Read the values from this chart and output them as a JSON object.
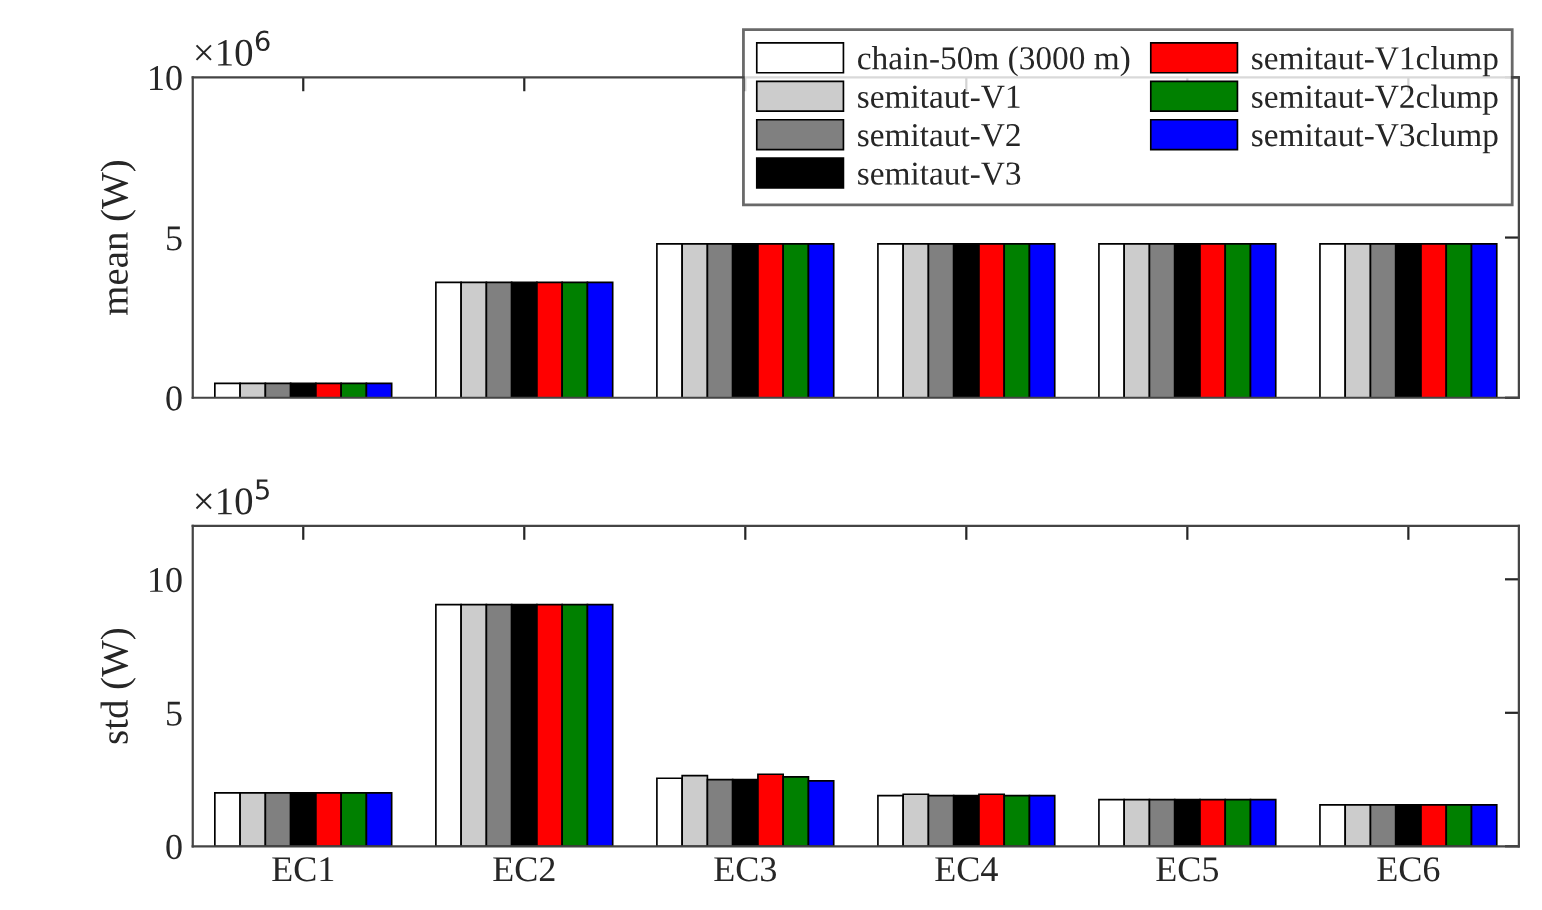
{
  "chart_data": [
    {
      "type": "bar",
      "ylabel": "mean (W)",
      "annotations": [
        "×10$^{6}$"
      ],
      "categories": [
        null,
        null,
        null,
        null,
        null,
        null
      ],
      "ylim": [
        0,
        10
      ],
      "yticks": [
        0,
        5,
        10
      ],
      "legend": "top right",
      "grid": false,
      "series": [
        {
          "name": "chain-50m (3000 m)",
          "color": "#ffffff",
          "values": [
            0.45,
            3.6,
            4.8,
            4.8,
            4.8,
            4.8
          ]
        },
        {
          "name": "semitaut-V1",
          "color": "#cccccc",
          "values": [
            0.45,
            3.6,
            4.8,
            4.8,
            4.8,
            4.8
          ]
        },
        {
          "name": "semitaut-V2",
          "color": "#808080",
          "values": [
            0.45,
            3.6,
            4.8,
            4.8,
            4.8,
            4.8
          ]
        },
        {
          "name": "semitaut-V3",
          "color": "#000000",
          "values": [
            0.45,
            3.6,
            4.8,
            4.8,
            4.8,
            4.8
          ]
        },
        {
          "name": "semitaut-V1clump",
          "color": "#ff0000",
          "values": [
            0.45,
            3.6,
            4.8,
            4.8,
            4.8,
            4.8
          ]
        },
        {
          "name": "semitaut-V2clump",
          "color": "#008000",
          "values": [
            0.45,
            3.6,
            4.8,
            4.8,
            4.8,
            4.8
          ]
        },
        {
          "name": "semitaut-V3clump",
          "color": "#0000ff",
          "values": [
            0.45,
            3.6,
            4.8,
            4.8,
            4.8,
            4.8
          ]
        }
      ]
    },
    {
      "type": "bar",
      "ylabel": "std (W)",
      "annotations": [
        "×10$^{5}$"
      ],
      "categories": [
        "EC1",
        "EC2",
        "EC3",
        "EC4",
        "EC5",
        "EC6"
      ],
      "ylim": [
        0,
        12
      ],
      "yticks": [
        0,
        5,
        10
      ],
      "grid": false,
      "series": [
        {
          "color": "#ffffff",
          "values": [
            2.0,
            9.05,
            2.55,
            1.9,
            1.75,
            1.55
          ]
        },
        {
          "color": "#cccccc",
          "values": [
            2.0,
            9.05,
            2.65,
            1.95,
            1.75,
            1.55
          ]
        },
        {
          "color": "#808080",
          "values": [
            2.0,
            9.05,
            2.5,
            1.9,
            1.75,
            1.55
          ]
        },
        {
          "color": "#000000",
          "values": [
            2.0,
            9.05,
            2.5,
            1.9,
            1.75,
            1.55
          ]
        },
        {
          "color": "#ff0000",
          "values": [
            2.0,
            9.05,
            2.7,
            1.95,
            1.75,
            1.55
          ]
        },
        {
          "color": "#008000",
          "values": [
            2.0,
            9.05,
            2.6,
            1.9,
            1.75,
            1.55
          ]
        },
        {
          "color": "#0000ff",
          "values": [
            2.0,
            9.05,
            2.45,
            1.9,
            1.75,
            1.55
          ]
        }
      ]
    }
  ]
}
